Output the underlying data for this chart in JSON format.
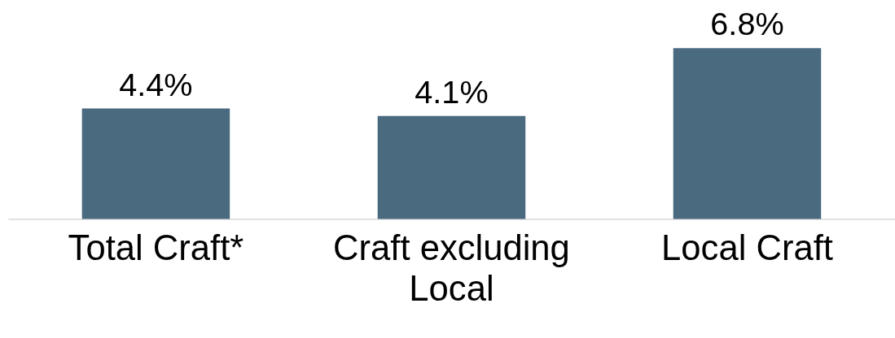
{
  "chart_data": {
    "type": "bar",
    "categories": [
      "Total Craft*",
      "Craft excluding Local",
      "Local Craft"
    ],
    "values": [
      4.4,
      4.1,
      6.8
    ],
    "value_labels": [
      "4.4%",
      "4.1%",
      "6.8%"
    ],
    "color": "#4a6a80"
  }
}
